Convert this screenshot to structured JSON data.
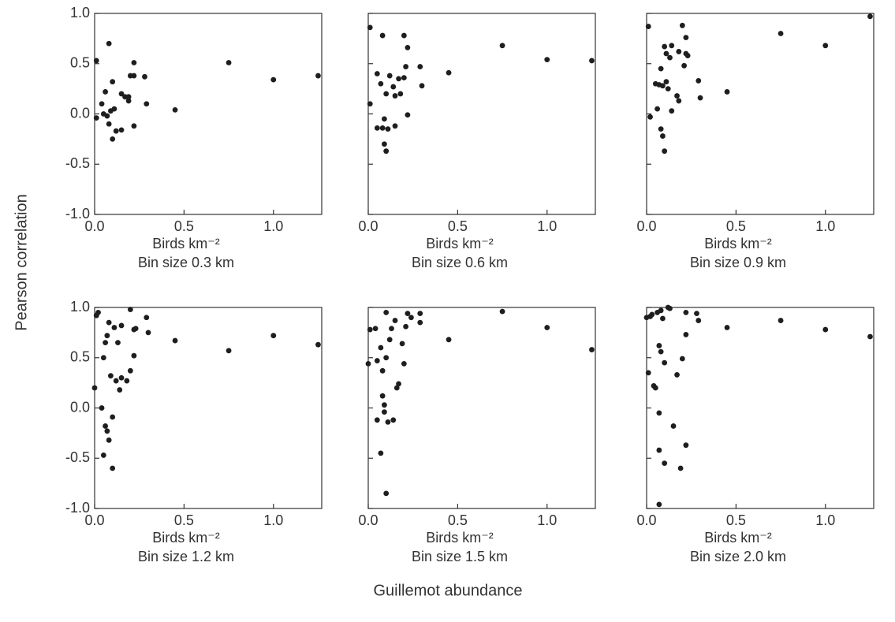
{
  "ylabel": "Pearson correlation",
  "xlabel": "Guillemot abundance",
  "chart_data": [
    {
      "type": "scatter",
      "xlabel": "Birds km⁻²",
      "subtitle": "Bin size 0.3 km",
      "color": "#1e1e1e",
      "yticklabels": true,
      "xlim": [
        0,
        1.27
      ],
      "ylim": [
        -1,
        1
      ],
      "xticks": [
        {
          "value": 0,
          "label": "0.0"
        },
        0.5,
        {
          "value": 1,
          "label": "1.0"
        }
      ],
      "yticks": [
        {
          "value": -1,
          "label": "-1.0"
        },
        -0.5,
        {
          "value": 0,
          "label": "0.0"
        },
        0.5,
        {
          "value": 1,
          "label": "1.0"
        }
      ],
      "x": [
        0.01,
        0.01,
        0.04,
        0.05,
        0.06,
        0.07,
        0.08,
        0.08,
        0.09,
        0.1,
        0.1,
        0.11,
        0.12,
        0.15,
        0.15,
        0.17,
        0.19,
        0.19,
        0.2,
        0.22,
        0.22,
        0.22,
        0.28,
        0.29,
        0.45,
        0.75,
        1.0,
        1.25
      ],
      "values": [
        0.53,
        -0.04,
        0.1,
        0.0,
        0.22,
        -0.02,
        0.7,
        -0.1,
        0.03,
        -0.25,
        0.32,
        0.05,
        -0.17,
        -0.16,
        0.2,
        0.17,
        0.17,
        0.13,
        0.38,
        0.38,
        0.51,
        -0.12,
        0.37,
        0.1,
        0.04,
        0.51,
        0.34,
        0.38
      ]
    },
    {
      "type": "scatter",
      "xlabel": "Birds km⁻²",
      "subtitle": "Bin size 0.6 km",
      "color": "#1e1e1e",
      "yticklabels": false,
      "xlim": [
        0,
        1.27
      ],
      "ylim": [
        -1,
        1
      ],
      "xticks": [
        {
          "value": 0,
          "label": "0.0"
        },
        0.5,
        {
          "value": 1,
          "label": "1.0"
        }
      ],
      "yticks": [
        {
          "value": -1,
          "label": "-1.0"
        },
        -0.5,
        {
          "value": 0,
          "label": "0.0"
        },
        0.5,
        {
          "value": 1,
          "label": "1.0"
        }
      ],
      "x": [
        0.01,
        0.01,
        0.05,
        0.05,
        0.07,
        0.08,
        0.08,
        0.09,
        0.09,
        0.1,
        0.1,
        0.11,
        0.12,
        0.14,
        0.15,
        0.15,
        0.17,
        0.18,
        0.2,
        0.2,
        0.21,
        0.22,
        0.22,
        0.29,
        0.3,
        0.45,
        0.75,
        1.0,
        1.25
      ],
      "values": [
        0.86,
        0.1,
        0.4,
        -0.14,
        0.3,
        0.78,
        -0.14,
        -0.05,
        -0.3,
        -0.37,
        0.2,
        -0.15,
        0.38,
        0.27,
        0.18,
        -0.12,
        0.35,
        0.2,
        0.36,
        0.78,
        0.47,
        0.66,
        -0.01,
        0.47,
        0.28,
        0.41,
        0.68,
        0.54,
        0.53
      ]
    },
    {
      "type": "scatter",
      "xlabel": "Birds km⁻²",
      "subtitle": "Bin size 0.9 km",
      "color": "#1e1e1e",
      "yticklabels": false,
      "xlim": [
        0,
        1.27
      ],
      "ylim": [
        -1,
        1
      ],
      "xticks": [
        {
          "value": 0,
          "label": "0.0"
        },
        0.5,
        {
          "value": 1,
          "label": "1.0"
        }
      ],
      "yticks": [
        {
          "value": -1,
          "label": "-1.0"
        },
        -0.5,
        {
          "value": 0,
          "label": "0.0"
        },
        0.5,
        {
          "value": 1,
          "label": "1.0"
        }
      ],
      "x": [
        0.01,
        0.02,
        0.05,
        0.06,
        0.07,
        0.08,
        0.08,
        0.09,
        0.09,
        0.1,
        0.1,
        0.11,
        0.11,
        0.12,
        0.13,
        0.14,
        0.14,
        0.17,
        0.18,
        0.18,
        0.2,
        0.21,
        0.22,
        0.22,
        0.23,
        0.29,
        0.3,
        0.45,
        0.75,
        1.0,
        1.25
      ],
      "values": [
        0.87,
        -0.03,
        0.3,
        0.05,
        0.29,
        -0.15,
        0.45,
        -0.22,
        0.28,
        0.67,
        -0.37,
        0.6,
        0.32,
        0.25,
        0.56,
        0.68,
        0.03,
        0.18,
        0.13,
        0.62,
        0.88,
        0.48,
        0.76,
        0.6,
        0.58,
        0.33,
        0.16,
        0.22,
        0.8,
        0.68,
        0.97
      ]
    },
    {
      "type": "scatter",
      "xlabel": "Birds km⁻²",
      "subtitle": "Bin size 1.2 km",
      "color": "#1e1e1e",
      "yticklabels": true,
      "xlim": [
        0,
        1.27
      ],
      "ylim": [
        -1,
        1
      ],
      "xticks": [
        {
          "value": 0,
          "label": "0.0"
        },
        0.5,
        {
          "value": 1,
          "label": "1.0"
        }
      ],
      "yticks": [
        {
          "value": -1,
          "label": "-1.0"
        },
        -0.5,
        {
          "value": 0,
          "label": "0.0"
        },
        0.5,
        {
          "value": 1,
          "label": "1.0"
        }
      ],
      "x": [
        0.01,
        0.0,
        0.02,
        0.04,
        0.05,
        0.05,
        0.06,
        0.06,
        0.07,
        0.07,
        0.08,
        0.08,
        0.09,
        0.1,
        0.1,
        0.11,
        0.12,
        0.13,
        0.14,
        0.15,
        0.15,
        0.18,
        0.2,
        0.2,
        0.22,
        0.22,
        0.23,
        0.29,
        0.3,
        0.45,
        0.75,
        1.0,
        1.25
      ],
      "values": [
        0.92,
        0.2,
        0.95,
        0.0,
        0.5,
        -0.47,
        0.65,
        -0.18,
        0.72,
        -0.23,
        0.85,
        -0.32,
        0.32,
        -0.09,
        -0.6,
        0.8,
        0.27,
        0.65,
        0.18,
        0.82,
        0.3,
        0.27,
        0.37,
        0.98,
        0.52,
        0.78,
        0.79,
        0.9,
        0.75,
        0.67,
        0.57,
        0.72,
        0.63
      ]
    },
    {
      "type": "scatter",
      "xlabel": "Birds km⁻²",
      "subtitle": "Bin size 1.5 km",
      "color": "#1e1e1e",
      "yticklabels": false,
      "xlim": [
        0,
        1.27
      ],
      "ylim": [
        -1,
        1
      ],
      "xticks": [
        {
          "value": 0,
          "label": "0.0"
        },
        0.5,
        {
          "value": 1,
          "label": "1.0"
        }
      ],
      "yticks": [
        {
          "value": -1,
          "label": "-1.0"
        },
        -0.5,
        {
          "value": 0,
          "label": "0.0"
        },
        0.5,
        {
          "value": 1,
          "label": "1.0"
        }
      ],
      "x": [
        0.0,
        0.01,
        0.04,
        0.05,
        0.05,
        0.07,
        0.07,
        0.08,
        0.08,
        0.09,
        0.09,
        0.1,
        0.1,
        0.1,
        0.11,
        0.12,
        0.13,
        0.14,
        0.15,
        0.16,
        0.17,
        0.19,
        0.2,
        0.21,
        0.22,
        0.24,
        0.29,
        0.29,
        0.45,
        0.75,
        1.0,
        1.25
      ],
      "values": [
        0.44,
        0.78,
        0.79,
        0.47,
        -0.12,
        -0.45,
        0.6,
        0.12,
        0.37,
        0.03,
        -0.04,
        0.5,
        -0.85,
        0.95,
        -0.14,
        0.68,
        0.79,
        -0.12,
        0.87,
        0.2,
        0.24,
        0.64,
        0.44,
        0.81,
        0.94,
        0.9,
        0.94,
        0.85,
        0.68,
        0.96,
        0.8,
        0.58
      ]
    },
    {
      "type": "scatter",
      "xlabel": "Birds km⁻²",
      "subtitle": "Bin size 2.0 km",
      "color": "#1e1e1e",
      "yticklabels": false,
      "xlim": [
        0,
        1.27
      ],
      "ylim": [
        -1,
        1
      ],
      "xticks": [
        {
          "value": 0,
          "label": "0.0"
        },
        0.5,
        {
          "value": 1,
          "label": "1.0"
        }
      ],
      "yticks": [
        {
          "value": -1,
          "label": "-1.0"
        },
        -0.5,
        {
          "value": 0,
          "label": "0.0"
        },
        0.5,
        {
          "value": 1,
          "label": "1.0"
        }
      ],
      "x": [
        0.0,
        0.01,
        0.02,
        0.03,
        0.04,
        0.05,
        0.06,
        0.07,
        0.07,
        0.07,
        0.07,
        0.08,
        0.08,
        0.09,
        0.1,
        0.1,
        0.12,
        0.13,
        0.15,
        0.17,
        0.19,
        0.2,
        0.22,
        0.22,
        0.22,
        0.28,
        0.29,
        0.45,
        0.75,
        1.0,
        1.25
      ],
      "values": [
        0.9,
        0.35,
        0.91,
        0.93,
        0.22,
        0.2,
        0.95,
        -0.42,
        -0.05,
        0.62,
        -0.96,
        0.97,
        0.56,
        0.89,
        0.45,
        -0.55,
        1.0,
        0.99,
        -0.18,
        0.33,
        -0.6,
        0.49,
        -0.37,
        0.95,
        0.73,
        0.94,
        0.87,
        0.8,
        0.87,
        0.78,
        0.71
      ]
    }
  ]
}
